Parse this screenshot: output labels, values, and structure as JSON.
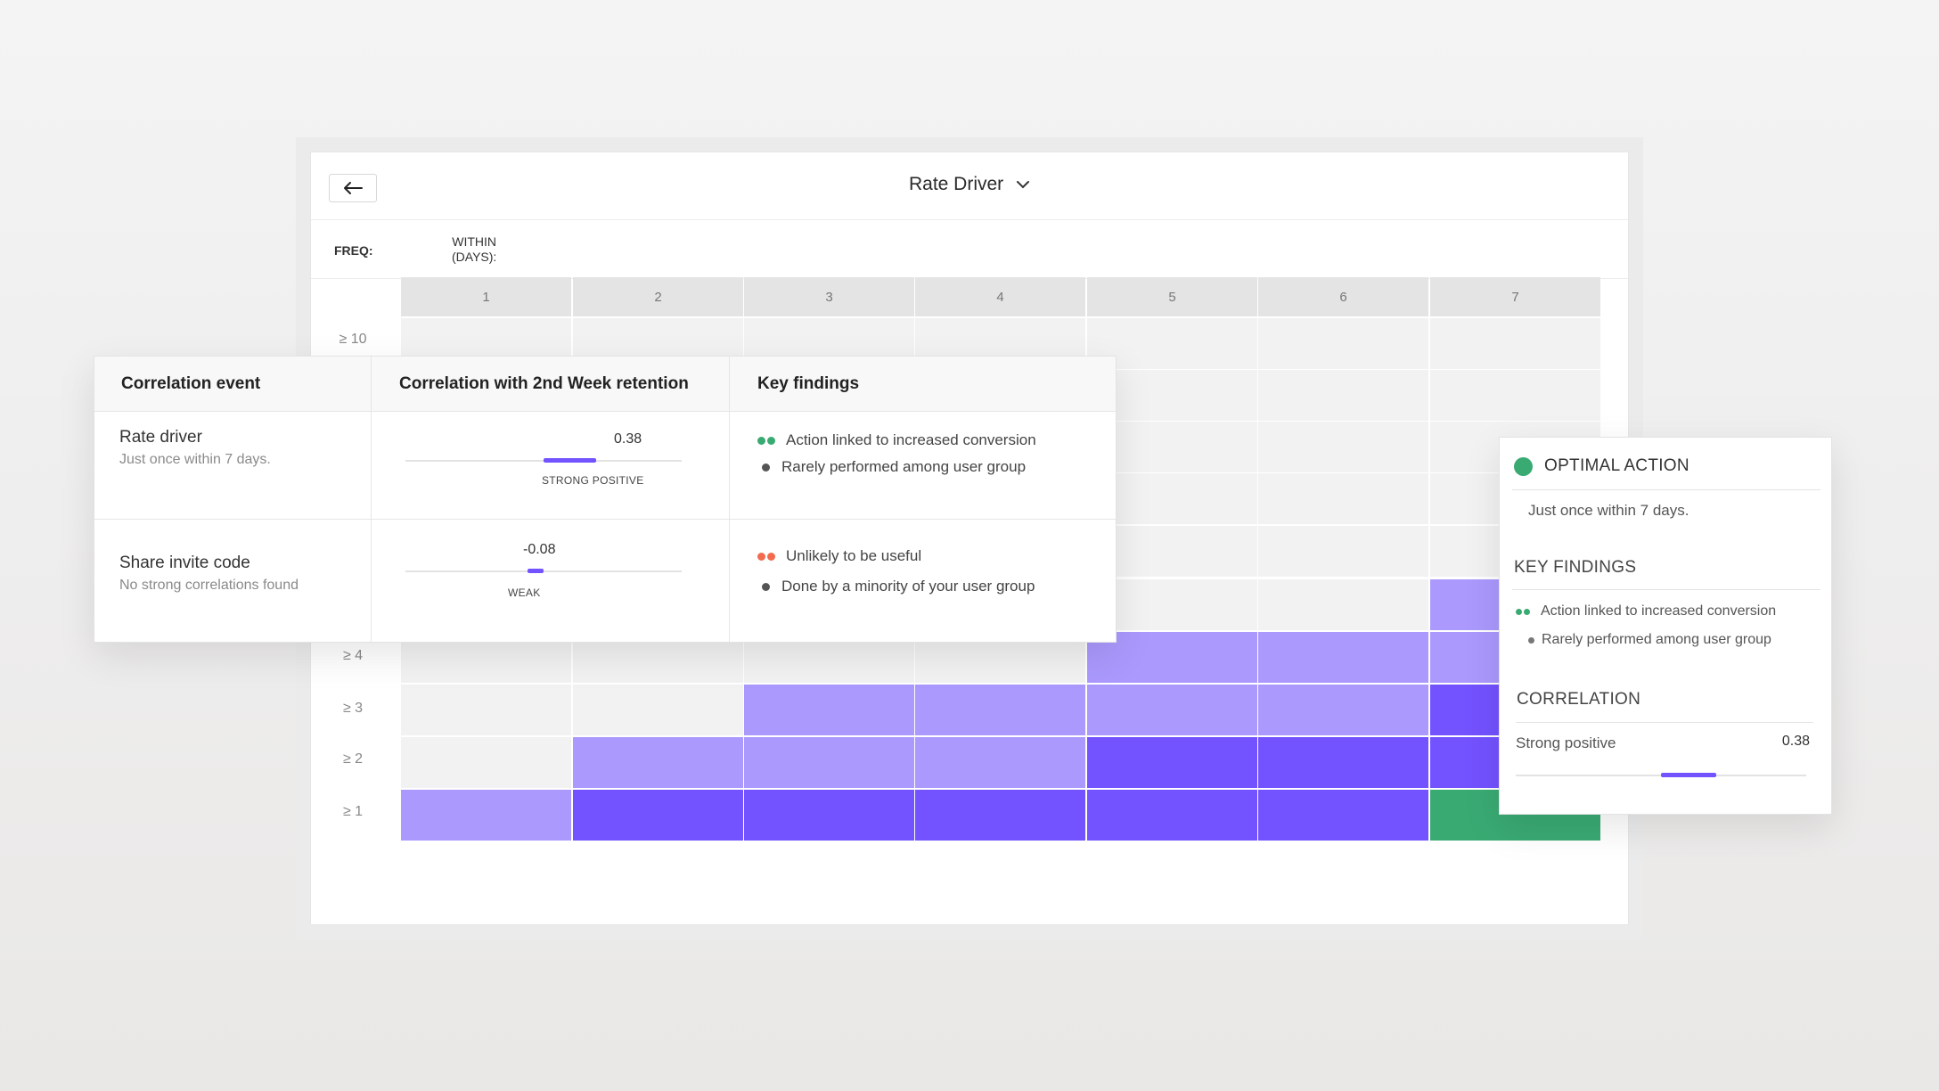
{
  "header": {
    "title": "Rate Driver",
    "back_icon": "arrow-left-icon",
    "chevron_icon": "chevron-down-icon"
  },
  "grid": {
    "freq_label": "FREQ:",
    "within_label_line1": "WITHIN",
    "within_label_line2": "(DAYS):",
    "columns": [
      "1",
      "2",
      "3",
      "4",
      "5",
      "6",
      "7"
    ],
    "row_labels": [
      "≥ 10",
      "≥ 4",
      "≥ 3",
      "≥ 2",
      "≥ 1"
    ],
    "colors": {
      "empty": "#f2f2f2",
      "light": "#ab99fd",
      "dark": "#7352ff",
      "optimal": "#3aaa73",
      "header": "#e4e4e4"
    }
  },
  "correlation_table": {
    "headers": {
      "event": "Correlation event",
      "correlation": "Correlation with 2nd Week retention",
      "findings": "Key findings"
    },
    "rows": [
      {
        "event": "Rate driver",
        "sub": "Just once within 7 days.",
        "value": "0.38",
        "strength": "STRONG POSITIVE",
        "findings": [
          {
            "text": "Action linked to increased conversion",
            "marker": "double-green"
          },
          {
            "text": "Rarely performed among user group",
            "marker": "single-grey"
          }
        ]
      },
      {
        "event": "Share invite code",
        "sub": "No strong correlations found",
        "value": "-0.08",
        "strength": "WEAK",
        "findings": [
          {
            "text": "Unlikely to be useful",
            "marker": "double-red"
          },
          {
            "text": "Done by a minority of your user group",
            "marker": "single-grey"
          }
        ]
      }
    ]
  },
  "optimal_card": {
    "title": "OPTIMAL ACTION",
    "subtitle": "Just once within 7 days.",
    "findings_title": "KEY FINDINGS",
    "findings": [
      {
        "text": "Action linked to increased conversion",
        "marker": "double-green"
      },
      {
        "text": "Rarely performed among user group",
        "marker": "single-grey"
      }
    ],
    "correlation_title": "CORRELATION",
    "correlation_label": "Strong positive",
    "correlation_value": "0.38"
  },
  "accent_colors": {
    "green": "#3aaa73",
    "red": "#f26b4e",
    "purple": "#7352ff"
  }
}
